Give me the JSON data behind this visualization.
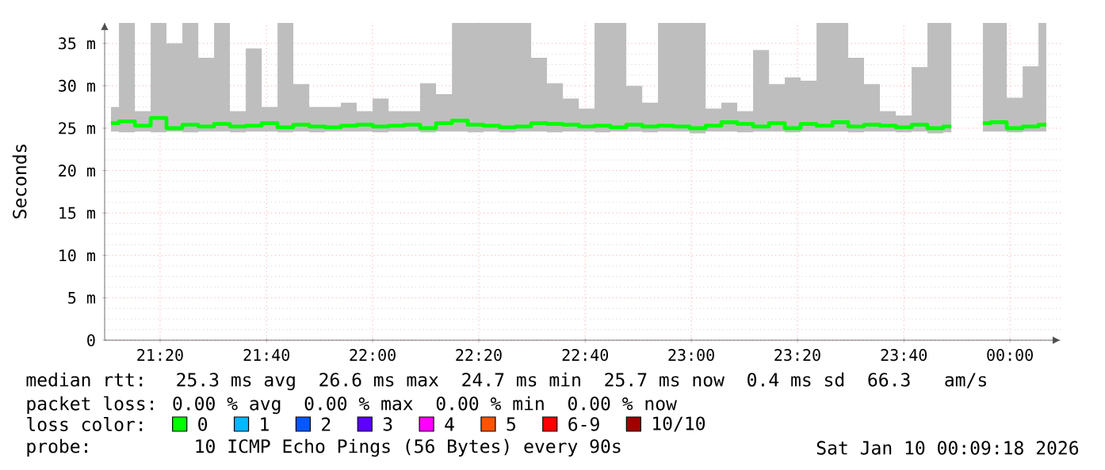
{
  "chart_data": {
    "type": "step",
    "ylabel": "Seconds",
    "legend_title": "loss color:",
    "legend": "bottom",
    "grid": true,
    "xlim": [
      21.159,
      24.159
    ],
    "ylim": [
      0,
      37.5
    ],
    "xticks": [
      {
        "value": 21.333,
        "label": "21:20"
      },
      {
        "value": 21.667,
        "label": "21:40"
      },
      {
        "value": 22,
        "label": "22:00"
      },
      {
        "value": 22.333,
        "label": "22:20"
      },
      {
        "value": 22.667,
        "label": "22:40"
      },
      {
        "value": 23,
        "label": "23:00"
      },
      {
        "value": 23.333,
        "label": "23:20"
      },
      {
        "value": 23.667,
        "label": "23:40"
      },
      {
        "value": 24,
        "label": "00:00"
      }
    ],
    "yticks": [
      0,
      {
        "value": 5,
        "label": "5 m"
      },
      {
        "value": 10,
        "label": "10 m"
      },
      {
        "value": 15,
        "label": "15 m"
      },
      {
        "value": 20,
        "label": "20 m"
      },
      {
        "value": 25,
        "label": "25 m"
      },
      {
        "value": 30,
        "label": "30 m"
      },
      {
        "value": 35,
        "label": "35 m"
      }
    ],
    "x": [
      21.179,
      21.229,
      21.279,
      21.328,
      21.378,
      21.428,
      21.478,
      21.527,
      21.577,
      21.627,
      21.677,
      21.726,
      21.776,
      21.826,
      21.876,
      21.925,
      21.975,
      22.025,
      22.075,
      22.124,
      22.174,
      22.224,
      22.274,
      22.323,
      22.373,
      22.423,
      22.473,
      22.522,
      22.572,
      22.622,
      22.672,
      22.721,
      22.771,
      22.821,
      22.871,
      22.92,
      22.97,
      23.02,
      23.07,
      23.119,
      23.169,
      23.219,
      23.269,
      23.318,
      23.368,
      23.418,
      23.468,
      23.517,
      23.567,
      23.617,
      23.667,
      23.716,
      23.766,
      23.816,
      23.866,
      23.915,
      23.965,
      24.015,
      24.065,
      24.114
    ],
    "series": [
      {
        "name": "0",
        "color": "#00ff00",
        "values": [
          25.6,
          25.8,
          25.3,
          26.2,
          25.0,
          25.4,
          25.2,
          25.5,
          25.2,
          25.3,
          25.6,
          25.1,
          25.4,
          25.2,
          25.1,
          25.3,
          25.4,
          25.2,
          25.3,
          25.4,
          25.0,
          25.6,
          25.9,
          25.4,
          25.3,
          25.1,
          25.2,
          25.6,
          25.5,
          25.4,
          25.2,
          25.3,
          25.1,
          25.4,
          25.2,
          25.3,
          25.2,
          25.0,
          25.3,
          25.7,
          25.5,
          25.2,
          25.6,
          25.0,
          25.5,
          25.3,
          25.7,
          25.2,
          25.4,
          25.3,
          25.1,
          25.4,
          25.0,
          25.2,
          null,
          25.6,
          25.7,
          25.0,
          25.2,
          25.4
        ],
        "lower": [
          24.6,
          24.5,
          24.6,
          24.5,
          24.6,
          24.5,
          24.6,
          24.6,
          24.5,
          24.6,
          24.6,
          24.5,
          24.6,
          24.5,
          24.6,
          24.6,
          24.6,
          24.5,
          24.6,
          24.6,
          24.5,
          24.6,
          24.6,
          24.5,
          24.6,
          24.5,
          24.6,
          24.6,
          24.5,
          24.6,
          24.6,
          24.5,
          24.6,
          24.6,
          24.5,
          24.6,
          24.6,
          24.4,
          24.6,
          24.6,
          24.5,
          24.6,
          24.6,
          24.5,
          24.6,
          24.6,
          24.6,
          24.5,
          24.6,
          24.6,
          24.5,
          24.6,
          24.4,
          24.5,
          null,
          24.6,
          24.6,
          24.5,
          24.6,
          24.6
        ],
        "upper": [
          27.5,
          37.4,
          27,
          37.4,
          35,
          37.4,
          33.3,
          37.4,
          27,
          34.4,
          27.5,
          37.4,
          30.2,
          27.5,
          27.5,
          28,
          27,
          28.5,
          27,
          27,
          30.3,
          29,
          37.4,
          37.4,
          37.4,
          37.4,
          37.4,
          33.3,
          30.3,
          28.5,
          27.3,
          37.4,
          37.4,
          30,
          28,
          37.4,
          37.4,
          37.4,
          27.3,
          28,
          27,
          34.2,
          30.2,
          31,
          30.6,
          37.4,
          37.4,
          33.3,
          30.2,
          27,
          26.5,
          32.2,
          37.4,
          37.4,
          null,
          37.4,
          37.4,
          28.6,
          32.3,
          37.4
        ]
      },
      {
        "name": "1",
        "color": "#00b8ff",
        "values": [
          null,
          null,
          null,
          null,
          null,
          null,
          null,
          null,
          null,
          null,
          null,
          null,
          null,
          null,
          null,
          null,
          null,
          null,
          null,
          null,
          null,
          null,
          null,
          null,
          null,
          null,
          null,
          null,
          null,
          null,
          null,
          null,
          null,
          null,
          null,
          null,
          null,
          null,
          null,
          null,
          null,
          null,
          null,
          null,
          null,
          null,
          null,
          null,
          null,
          null,
          null,
          null,
          null,
          null,
          null,
          null,
          null,
          null,
          null,
          null
        ]
      },
      {
        "name": "2",
        "color": "#0059ff",
        "values": [
          null,
          null,
          null,
          null,
          null,
          null,
          null,
          null,
          null,
          null,
          null,
          null,
          null,
          null,
          null,
          null,
          null,
          null,
          null,
          null,
          null,
          null,
          null,
          null,
          null,
          null,
          null,
          null,
          null,
          null,
          null,
          null,
          null,
          null,
          null,
          null,
          null,
          null,
          null,
          null,
          null,
          null,
          null,
          null,
          null,
          null,
          null,
          null,
          null,
          null,
          null,
          null,
          null,
          null,
          null,
          null,
          null,
          null,
          null,
          null
        ]
      },
      {
        "name": "3",
        "color": "#5e00ff",
        "values": [
          null,
          null,
          null,
          null,
          null,
          null,
          null,
          null,
          null,
          null,
          null,
          null,
          null,
          null,
          null,
          null,
          null,
          null,
          null,
          null,
          null,
          null,
          null,
          null,
          null,
          null,
          null,
          null,
          null,
          null,
          null,
          null,
          null,
          null,
          null,
          null,
          null,
          null,
          null,
          null,
          null,
          null,
          null,
          null,
          null,
          null,
          null,
          null,
          null,
          null,
          null,
          null,
          null,
          null,
          null,
          null,
          null,
          null,
          null,
          null
        ]
      },
      {
        "name": "4",
        "color": "#ff00ff",
        "values": [
          null,
          null,
          null,
          null,
          null,
          null,
          null,
          null,
          null,
          null,
          null,
          null,
          null,
          null,
          null,
          null,
          null,
          null,
          null,
          null,
          null,
          null,
          null,
          null,
          null,
          null,
          null,
          null,
          null,
          null,
          null,
          null,
          null,
          null,
          null,
          null,
          null,
          null,
          null,
          null,
          null,
          null,
          null,
          null,
          null,
          null,
          null,
          null,
          null,
          null,
          null,
          null,
          null,
          null,
          null,
          null,
          null,
          null,
          null,
          null
        ]
      },
      {
        "name": "5",
        "color": "#ff5500",
        "values": [
          null,
          null,
          null,
          null,
          null,
          null,
          null,
          null,
          null,
          null,
          null,
          null,
          null,
          null,
          null,
          null,
          null,
          null,
          null,
          null,
          null,
          null,
          null,
          null,
          null,
          null,
          null,
          null,
          null,
          null,
          null,
          null,
          null,
          null,
          null,
          null,
          null,
          null,
          null,
          null,
          null,
          null,
          null,
          null,
          null,
          null,
          null,
          null,
          null,
          null,
          null,
          null,
          null,
          null,
          null,
          null,
          null,
          null,
          null,
          null
        ]
      },
      {
        "name": "6-9",
        "color": "#ff0000",
        "values": [
          null,
          null,
          null,
          null,
          null,
          null,
          null,
          null,
          null,
          null,
          null,
          null,
          null,
          null,
          null,
          null,
          null,
          null,
          null,
          null,
          null,
          null,
          null,
          null,
          null,
          null,
          null,
          null,
          null,
          null,
          null,
          null,
          null,
          null,
          null,
          null,
          null,
          null,
          null,
          null,
          null,
          null,
          null,
          null,
          null,
          null,
          null,
          null,
          null,
          null,
          null,
          null,
          null,
          null,
          null,
          null,
          null,
          null,
          null,
          null
        ]
      },
      {
        "name": "10/10",
        "color": "#a10000",
        "values": [
          null,
          null,
          null,
          null,
          null,
          null,
          null,
          null,
          null,
          null,
          null,
          null,
          null,
          null,
          null,
          null,
          null,
          null,
          null,
          null,
          null,
          null,
          null,
          null,
          null,
          null,
          null,
          null,
          null,
          null,
          null,
          null,
          null,
          null,
          null,
          null,
          null,
          null,
          null,
          null,
          null,
          null,
          null,
          null,
          null,
          null,
          null,
          null,
          null,
          null,
          null,
          null,
          null,
          null,
          null,
          null,
          null,
          null,
          null,
          null
        ]
      }
    ],
    "annotations": [
      "median rtt:  25.3 ms avg  26.6 ms max  24.7 ms min  25.7 ms now  0.4 ms sd  66.3   am/s",
      "packet loss: 0.00 % avg  0.00 % max  0.00 % min  0.00 % now",
      "probe:       10 ICMP Echo Pings (56 Bytes) every 90s",
      "Sat Jan 10 00:09:18 2026"
    ]
  }
}
